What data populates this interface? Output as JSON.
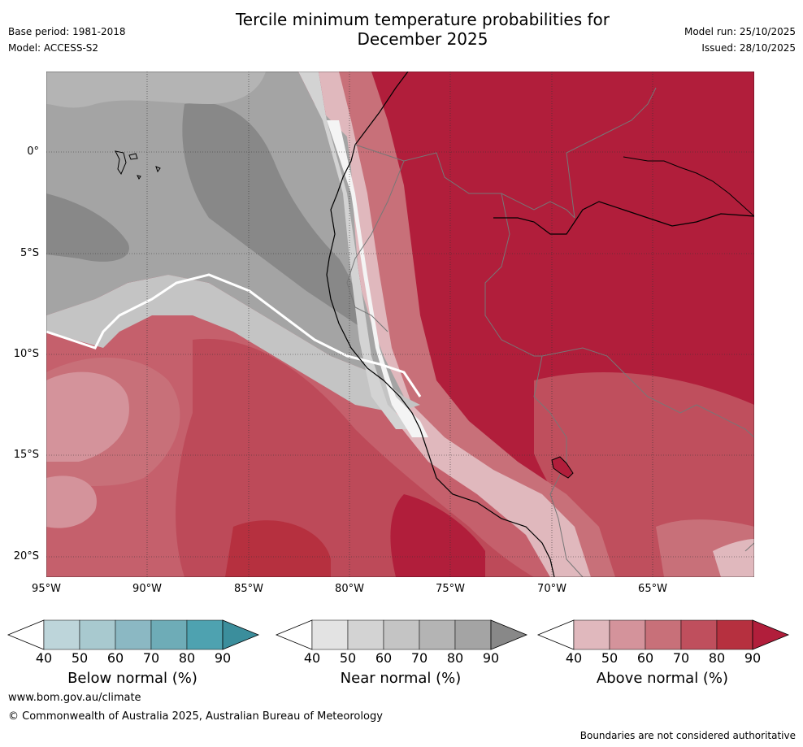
{
  "header": {
    "title_line1": "Tercile minimum temperature probabilities for",
    "title_line2": "December 2025",
    "base_period": "Base period: 1981-2018",
    "model": "Model: ACCESS-S2",
    "model_run": "Model run: 25/10/2025",
    "issued": "Issued: 28/10/2025"
  },
  "map": {
    "lat_labels": [
      "0°",
      "5°S",
      "10°S",
      "15°S",
      "20°S"
    ],
    "lon_labels": [
      "95°W",
      "90°W",
      "85°W",
      "80°W",
      "75°W",
      "70°W",
      "65°W"
    ],
    "extent": {
      "lon_min": -95,
      "lon_max": -60,
      "lat_min": -21,
      "lat_max": 4
    }
  },
  "colorbars": [
    {
      "label": "Below normal (%)",
      "ticks": [
        "40",
        "50",
        "60",
        "70",
        "80",
        "90"
      ],
      "colors": [
        "#ffffff",
        "#bdd5da",
        "#a8c9cf",
        "#8bb8c3",
        "#6eacb7",
        "#4ea2b0",
        "#3b8e9c"
      ]
    },
    {
      "label": "Near normal (%)",
      "ticks": [
        "40",
        "50",
        "60",
        "70",
        "80",
        "90"
      ],
      "colors": [
        "#ffffff",
        "#e3e3e3",
        "#d3d3d3",
        "#c4c4c4",
        "#b4b4b4",
        "#a4a4a4",
        "#888888"
      ]
    },
    {
      "label": "Above normal (%)",
      "ticks": [
        "40",
        "50",
        "60",
        "70",
        "80",
        "90"
      ],
      "colors": [
        "#ffffff",
        "#e0b8bd",
        "#d4939b",
        "#c87079",
        "#bf4f5d",
        "#b6303f",
        "#b11e3b"
      ]
    }
  ],
  "footer": {
    "url": "www.bom.gov.au/climate",
    "copyright": "© Commonwealth of Australia 2025, Australian Bureau of Meteorology",
    "note": "Boundaries are not considered authoritative"
  }
}
